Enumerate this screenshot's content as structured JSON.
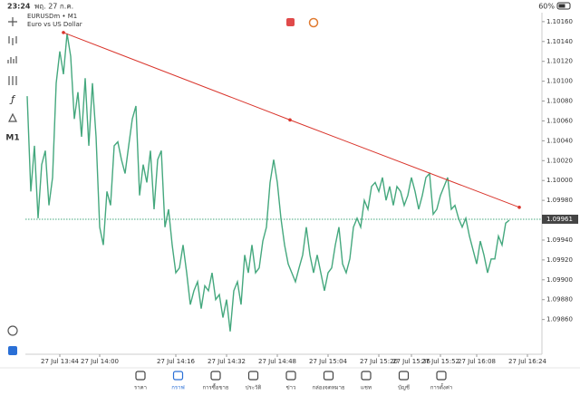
{
  "status_bar": {
    "time": "23:24",
    "date": "พฤ. 27 ก.ค.",
    "battery": "60%"
  },
  "toolbar": {
    "timeframe": "M1"
  },
  "chart_data": {
    "type": "line",
    "title": "EURUSDm • M1",
    "subtitle": "Euro vs US Dollar",
    "color": "#45a87e",
    "values": [
      1.10085,
      1.09989,
      1.10035,
      1.09962,
      1.10016,
      1.1003,
      1.09975,
      1.10003,
      1.10098,
      1.1013,
      1.10107,
      1.10148,
      1.10125,
      1.10062,
      1.10089,
      1.10044,
      1.10103,
      1.10035,
      1.10098,
      1.10044,
      1.09953,
      1.09935,
      1.09989,
      1.09975,
      1.10035,
      1.10039,
      1.10021,
      1.10007,
      1.10035,
      1.10062,
      1.10075,
      1.09985,
      1.10016,
      1.09998,
      1.1003,
      1.09971,
      1.10021,
      1.1003,
      1.09953,
      1.09971,
      1.09935,
      1.09907,
      1.09912,
      1.09935,
      1.09907,
      1.09875,
      1.09889,
      1.09898,
      1.09871,
      1.09894,
      1.09889,
      1.09907,
      1.0988,
      1.09885,
      1.09862,
      1.0988,
      1.09848,
      1.09889,
      1.09898,
      1.09875,
      1.09925,
      1.09907,
      1.09935,
      1.09907,
      1.09912,
      1.09939,
      1.09953,
      1.09998,
      1.10021,
      1.09998,
      1.09962,
      1.09935,
      1.09916,
      1.09907,
      1.09898,
      1.09912,
      1.09925,
      1.09953,
      1.09925,
      1.09907,
      1.09925,
      1.09907,
      1.09889,
      1.09907,
      1.09912,
      1.09935,
      1.09953,
      1.09916,
      1.09907,
      1.09921,
      1.09953,
      1.09962,
      1.09953,
      1.0998,
      1.09971,
      1.09994,
      1.09998,
      1.09989,
      1.10003,
      1.0998,
      1.09994,
      1.09975,
      1.09994,
      1.09989,
      1.09975,
      1.09985,
      1.10003,
      1.09989,
      1.09971,
      1.09985,
      1.10003,
      1.10007,
      1.09966,
      1.09971,
      1.09985,
      1.09994,
      1.10003,
      1.09971,
      1.09975,
      1.09962,
      1.09953,
      1.09962,
      1.09944,
      1.0993,
      1.09916,
      1.09939,
      1.09925,
      1.09907,
      1.09921,
      1.09921,
      1.09944,
      1.09935,
      1.09957,
      1.0996
    ],
    "xlim": [
      0,
      140
    ],
    "ylim": [
      1.09825,
      1.10169
    ],
    "xticks": [
      {
        "value": 9,
        "label": "27 Jul 13:44"
      },
      {
        "value": 20,
        "label": "27 Jul 14:00"
      },
      {
        "value": 41,
        "label": "27 Jul 14:16"
      },
      {
        "value": 55,
        "label": "27 Jul 14:32"
      },
      {
        "value": 69,
        "label": "27 Jul 14:48"
      },
      {
        "value": 83,
        "label": "27 Jul 15:04"
      },
      {
        "value": 97,
        "label": "27 Jul 15:20"
      },
      {
        "value": 106,
        "label": "27 Jul 15:36"
      },
      {
        "value": 114,
        "label": "27 Jul 15:52"
      },
      {
        "value": 124,
        "label": "27 Jul 16:08"
      },
      {
        "value": 138,
        "label": "27 Jul 16:24"
      }
    ],
    "yticks": [
      {
        "value": 1.1016,
        "label": "1.10160"
      },
      {
        "value": 1.1014,
        "label": "1.10140"
      },
      {
        "value": 1.1012,
        "label": "1.10120"
      },
      {
        "value": 1.101,
        "label": "1.10100"
      },
      {
        "value": 1.1008,
        "label": "1.10080"
      },
      {
        "value": 1.1006,
        "label": "1.10060"
      },
      {
        "value": 1.1004,
        "label": "1.10040"
      },
      {
        "value": 1.1002,
        "label": "1.10020"
      },
      {
        "value": 1.1,
        "label": "1.10000"
      },
      {
        "value": 1.0998,
        "label": "1.09980"
      },
      {
        "value": 1.0994,
        "label": "1.09940"
      },
      {
        "value": 1.0992,
        "label": "1.09920"
      },
      {
        "value": 1.099,
        "label": "1.09900"
      },
      {
        "value": 1.0988,
        "label": "1.09880"
      },
      {
        "value": 1.0986,
        "label": "1.09860"
      }
    ],
    "current_price": {
      "value": 1.09961,
      "label": "1.09961",
      "color": "#45a87e"
    },
    "trendline": {
      "color": "#d9342b",
      "x": [
        10,
        72.5,
        135.75
      ],
      "y": [
        1.10149,
        1.10061,
        1.09973
      ]
    }
  },
  "nav": {
    "items": [
      "ราคา",
      "กราฟ",
      "การซื้อขาย",
      "ประวัติ",
      "ข่าว",
      "กล่องจดหมาย",
      "แชท",
      "บัญชี",
      "การตั้งค่า"
    ],
    "active": 1,
    "active_color": "#2a6fd6"
  }
}
